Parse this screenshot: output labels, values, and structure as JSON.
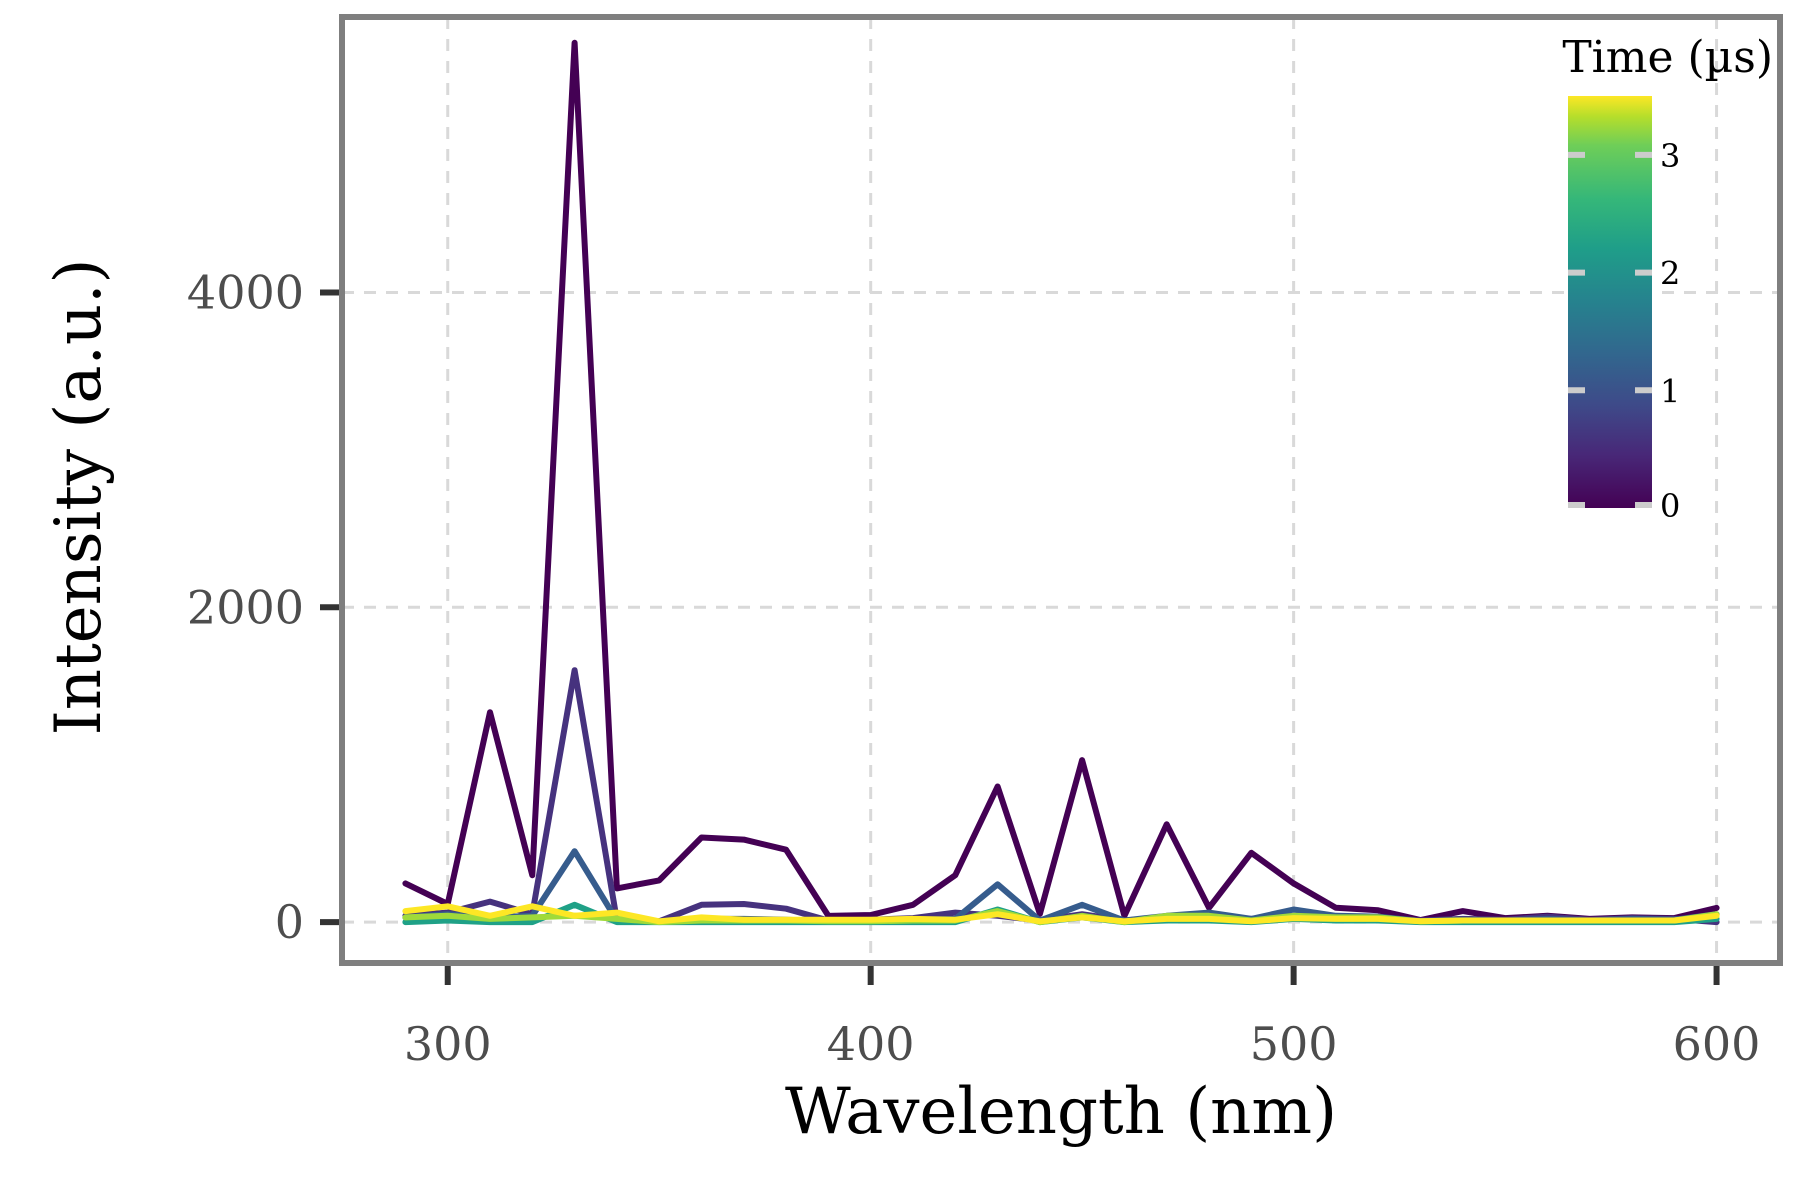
{
  "chart_data": {
    "type": "line",
    "title": "",
    "xlabel": "Wavelength (nm)",
    "ylabel": "Intensity (a.u.)",
    "xlim": [
      275,
      615
    ],
    "ylim": [
      -260,
      5750
    ],
    "x_ticks": [
      300,
      400,
      500,
      600
    ],
    "x_tick_labels": [
      "300",
      "400",
      "500",
      "600"
    ],
    "y_ticks": [
      0,
      2000,
      4000
    ],
    "y_tick_labels": [
      "0",
      "2000",
      "4000"
    ],
    "grid": true,
    "grid_style": "dashed",
    "legend": {
      "title": "Time (µs)",
      "type": "colorbar",
      "colormap": "viridis",
      "range": [
        0,
        3.5
      ],
      "ticks": [
        0,
        1,
        2,
        3
      ],
      "tick_labels": [
        "0",
        "1",
        "2",
        "3"
      ],
      "placement": "top-right"
    },
    "x": [
      290,
      300,
      310,
      320,
      330,
      340,
      350,
      360,
      370,
      380,
      390,
      400,
      410,
      420,
      430,
      440,
      450,
      460,
      470,
      480,
      490,
      500,
      510,
      520,
      530,
      540,
      550,
      560,
      570,
      580,
      590,
      600
    ],
    "series": [
      {
        "name": "0",
        "time": 0.0,
        "color": "#440154",
        "values": [
          246,
          115,
          1333,
          298,
          5586,
          214,
          265,
          537,
          524,
          460,
          39,
          45,
          110,
          298,
          861,
          52,
          1029,
          39,
          621,
          91,
          440,
          246,
          91,
          75,
          13,
          70,
          25,
          40,
          20,
          30,
          25,
          90
        ]
      },
      {
        "name": "0.5",
        "time": 0.5,
        "color": "#46327e",
        "values": [
          40,
          60,
          130,
          50,
          1600,
          10,
          5,
          110,
          115,
          85,
          10,
          15,
          25,
          60,
          40,
          10,
          50,
          10,
          30,
          30,
          20,
          40,
          30,
          30,
          10,
          20,
          15,
          35,
          15,
          25,
          20,
          0
        ]
      },
      {
        "name": "1",
        "time": 1.0,
        "color": "#365c8d",
        "values": [
          30,
          50,
          30,
          40,
          450,
          10,
          5,
          20,
          20,
          15,
          5,
          10,
          15,
          20,
          240,
          10,
          110,
          10,
          40,
          60,
          20,
          80,
          40,
          35,
          5,
          15,
          10,
          20,
          10,
          20,
          15,
          50
        ]
      },
      {
        "name": "2",
        "time": 2.0,
        "color": "#1fa187",
        "values": [
          0,
          10,
          0,
          0,
          110,
          0,
          0,
          0,
          0,
          0,
          0,
          0,
          0,
          0,
          80,
          0,
          30,
          0,
          10,
          10,
          0,
          20,
          10,
          10,
          0,
          0,
          0,
          0,
          0,
          0,
          0,
          20
        ]
      },
      {
        "name": "3",
        "time": 3.0,
        "color": "#9fda3a",
        "values": [
          30,
          40,
          20,
          30,
          40,
          20,
          0,
          10,
          10,
          10,
          5,
          5,
          10,
          10,
          70,
          0,
          40,
          0,
          40,
          40,
          10,
          40,
          30,
          30,
          5,
          10,
          10,
          10,
          10,
          10,
          10,
          50
        ]
      },
      {
        "name": "3.5",
        "time": 3.5,
        "color": "#fde725",
        "values": [
          70,
          100,
          40,
          100,
          40,
          60,
          5,
          30,
          15,
          15,
          15,
          15,
          20,
          15,
          50,
          5,
          30,
          5,
          20,
          20,
          5,
          25,
          20,
          20,
          5,
          10,
          10,
          10,
          10,
          10,
          10,
          40
        ]
      }
    ]
  }
}
